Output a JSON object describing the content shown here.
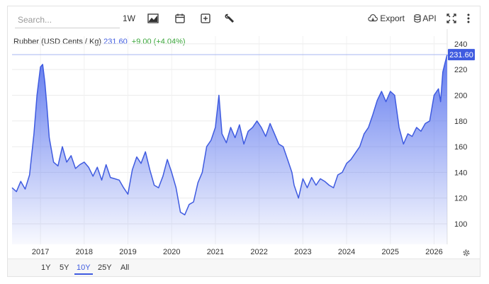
{
  "toolbar": {
    "search_placeholder": "Search...",
    "interval_label": "1W",
    "export_label": "Export",
    "api_label": "API"
  },
  "legend": {
    "name": "Rubber (USD Cents / Kg)",
    "price": "231.60",
    "change": "+9.00 (+4.04%)"
  },
  "price_tag": "231.60",
  "range_buttons": [
    "1Y",
    "5Y",
    "10Y",
    "25Y",
    "All"
  ],
  "active_range": "10Y",
  "colors": {
    "line": "#3f5be0",
    "fill_top": "#5a74ee",
    "change_up": "#3aa63a"
  },
  "chart_data": {
    "type": "area",
    "title": "Rubber (USD Cents / Kg)",
    "xlabel": "",
    "ylabel": "",
    "ylim": [
      84,
      246
    ],
    "yticks": [
      100,
      120,
      140,
      160,
      180,
      200,
      220,
      240
    ],
    "xticks": [
      "2017",
      "2018",
      "2019",
      "2020",
      "2021",
      "2022",
      "2023",
      "2024",
      "2025",
      "2026"
    ],
    "grid": true,
    "last_value": 231.6,
    "series": [
      {
        "x": [
          2016.35,
          2016.45,
          2016.55,
          2016.65,
          2016.75,
          2016.85,
          2016.92,
          2017.0,
          2017.05,
          2017.1,
          2017.15,
          2017.2,
          2017.3,
          2017.4,
          2017.5,
          2017.6,
          2017.7,
          2017.8,
          2017.9,
          2018.0,
          2018.1,
          2018.2,
          2018.3,
          2018.4,
          2018.5,
          2018.6,
          2018.7,
          2018.8,
          2018.9,
          2019.0,
          2019.1,
          2019.2,
          2019.3,
          2019.4,
          2019.5,
          2019.6,
          2019.7,
          2019.8,
          2019.9,
          2020.0,
          2020.1,
          2020.2,
          2020.3,
          2020.4,
          2020.5,
          2020.6,
          2020.7,
          2020.8,
          2020.9,
          2021.0,
          2021.08,
          2021.15,
          2021.25,
          2021.35,
          2021.45,
          2021.55,
          2021.65,
          2021.75,
          2021.85,
          2021.95,
          2022.05,
          2022.15,
          2022.25,
          2022.35,
          2022.45,
          2022.55,
          2022.65,
          2022.75,
          2022.8,
          2022.9,
          2023.0,
          2023.1,
          2023.2,
          2023.3,
          2023.4,
          2023.5,
          2023.6,
          2023.7,
          2023.8,
          2023.9,
          2024.0,
          2024.1,
          2024.2,
          2024.3,
          2024.4,
          2024.5,
          2024.6,
          2024.7,
          2024.8,
          2024.9,
          2025.0,
          2025.1,
          2025.2,
          2025.3,
          2025.4,
          2025.5,
          2025.6,
          2025.7,
          2025.8,
          2025.9,
          2026.0,
          2026.1,
          2026.15,
          2026.2,
          2026.25,
          2026.3
        ],
        "y": [
          128,
          125,
          133,
          127,
          138,
          170,
          200,
          222,
          224,
          210,
          190,
          167,
          148,
          145,
          160,
          148,
          153,
          143,
          146,
          148,
          144,
          137,
          144,
          134,
          146,
          136,
          135,
          134,
          128,
          123,
          142,
          152,
          147,
          156,
          142,
          130,
          128,
          137,
          150,
          140,
          128,
          109,
          107,
          115,
          117,
          132,
          140,
          160,
          165,
          175,
          200,
          170,
          163,
          175,
          167,
          177,
          162,
          172,
          175,
          180,
          175,
          168,
          178,
          170,
          162,
          160,
          150,
          140,
          130,
          120,
          135,
          128,
          136,
          130,
          135,
          133,
          130,
          128,
          138,
          140,
          147,
          150,
          155,
          160,
          170,
          175,
          185,
          196,
          203,
          195,
          203,
          200,
          175,
          162,
          170,
          168,
          175,
          172,
          178,
          180,
          200,
          205,
          195,
          218,
          225,
          231.6
        ]
      }
    ]
  }
}
